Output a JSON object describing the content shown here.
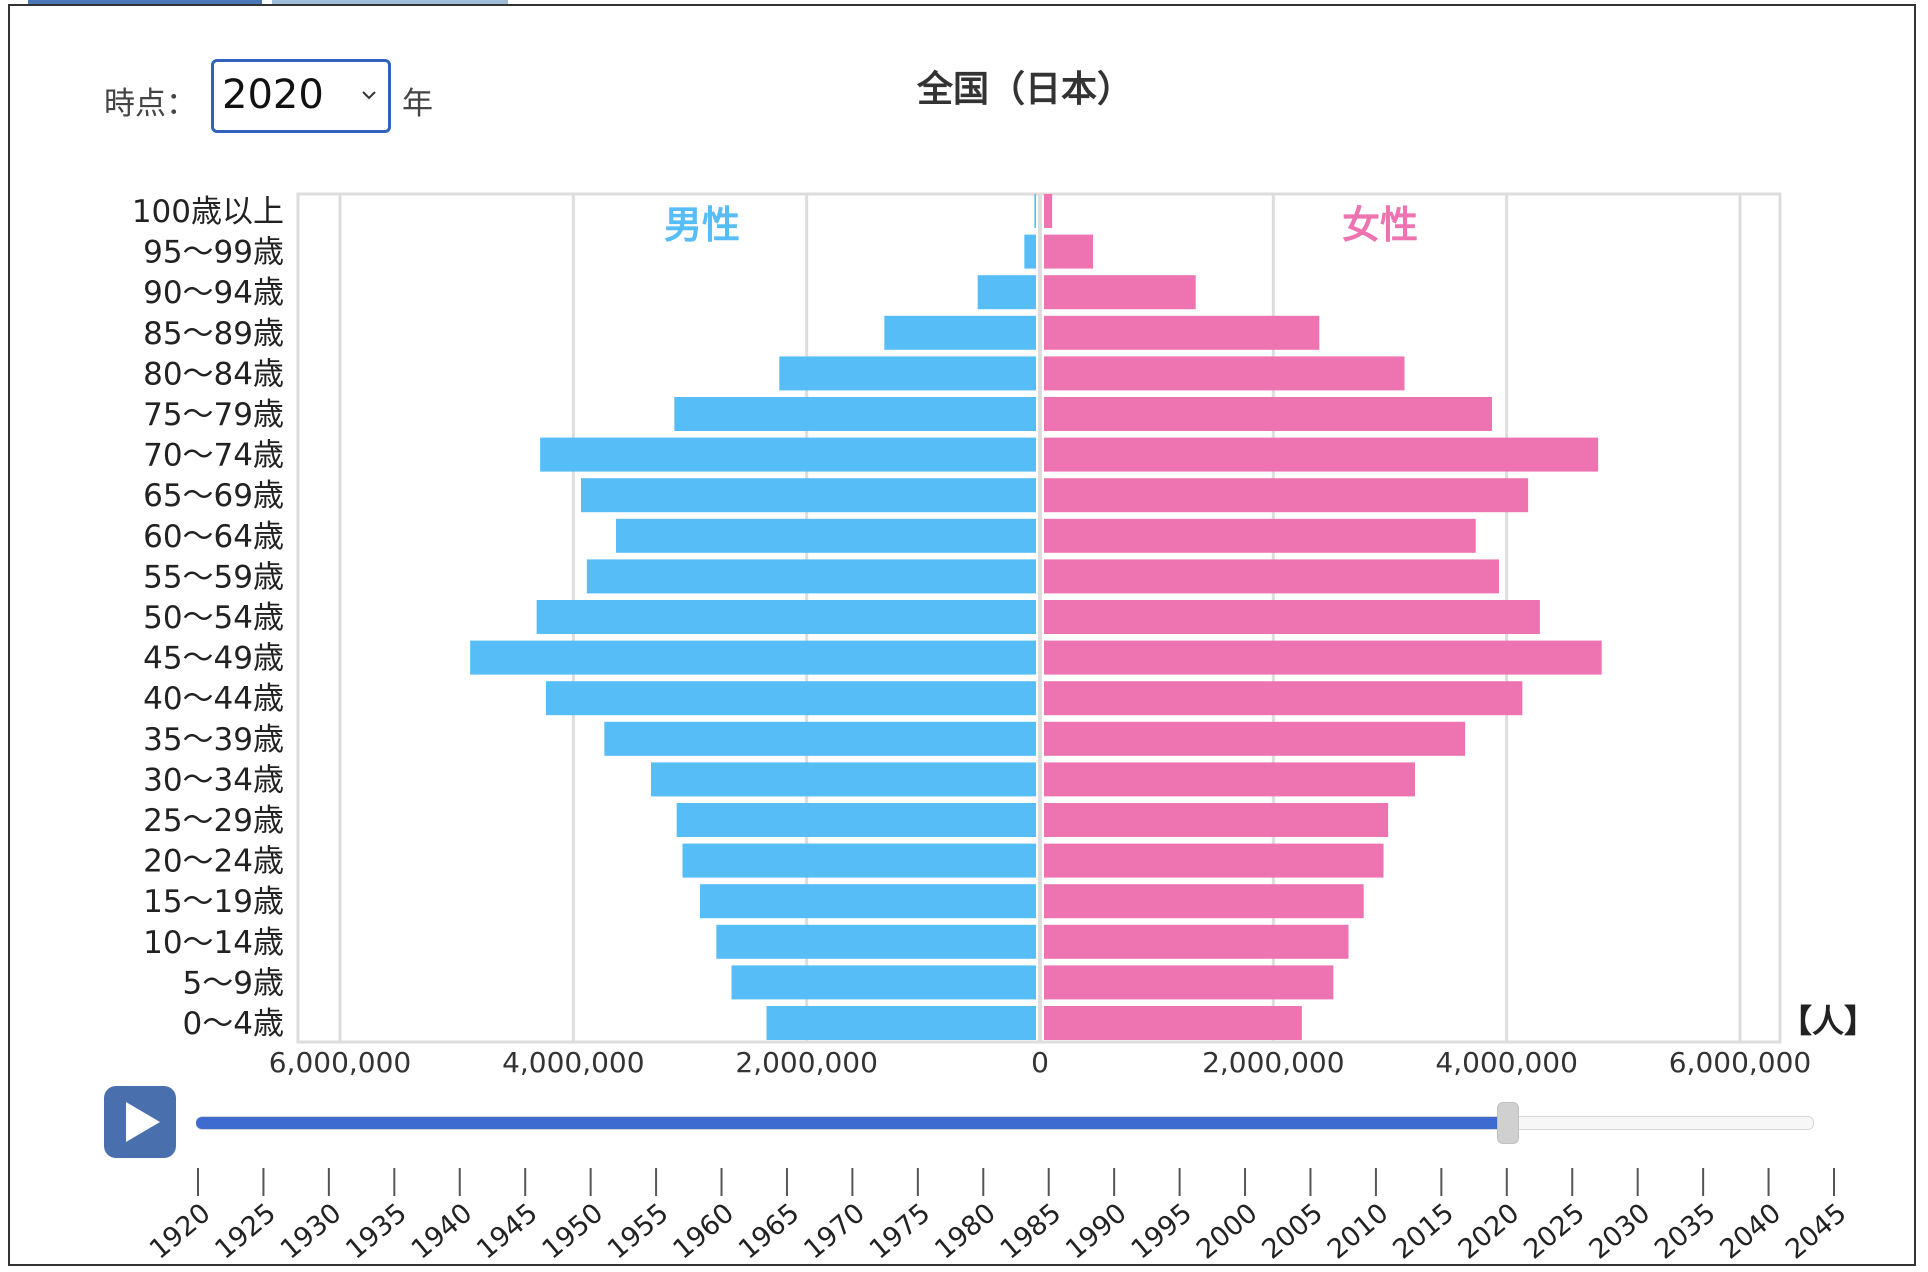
{
  "controls": {
    "time_label": "時点：",
    "year_selected": "2020",
    "year_unit": "年",
    "play_icon": "play-icon",
    "slider_value_year": 2020
  },
  "colors": {
    "male": "#56bdf6",
    "female": "#ee74b1",
    "male_label": "#56bdf6",
    "female_label": "#ee74b1",
    "accent": "#3d6bcf"
  },
  "chart_data": {
    "type": "bar",
    "orientation": "horizontal-pyramid",
    "title": "全国（日本）",
    "unit_label": "【人】",
    "categories": [
      "100歳以上",
      "95〜99歳",
      "90〜94歳",
      "85〜89歳",
      "80〜84歳",
      "75〜79歳",
      "70〜74歳",
      "65〜69歳",
      "60〜64歳",
      "55〜59歳",
      "50〜54歳",
      "45〜49歳",
      "40〜44歳",
      "35〜39歳",
      "30〜34歳",
      "25〜29歳",
      "20〜24歳",
      "15〜19歳",
      "10〜14歳",
      "5〜9歳",
      "0〜4歳"
    ],
    "series": [
      {
        "name": "男性",
        "values": [
          14000,
          100000,
          500000,
          1300000,
          2200000,
          3100000,
          4250000,
          3900000,
          3600000,
          3850000,
          4280000,
          4850000,
          4200000,
          3700000,
          3300000,
          3080000,
          3030000,
          2880000,
          2740000,
          2610000,
          2310000
        ]
      },
      {
        "name": "女性",
        "values": [
          70000,
          420000,
          1300000,
          2360000,
          3090000,
          3840000,
          4750000,
          4150000,
          3700000,
          3900000,
          4250000,
          4780000,
          4100000,
          3610000,
          3180000,
          2950000,
          2910000,
          2740000,
          2610000,
          2480000,
          2210000
        ]
      }
    ],
    "xticks": [
      "6,000,000",
      "4,000,000",
      "2,000,000",
      "0",
      "2,000,000",
      "4,000,000",
      "6,000,000"
    ],
    "xlim": [
      -6000000,
      6000000
    ],
    "grid": true
  },
  "timeline": {
    "years": [
      "1920",
      "1925",
      "1930",
      "1935",
      "1940",
      "1945",
      "1950",
      "1955",
      "1960",
      "1965",
      "1970",
      "1975",
      "1980",
      "1985",
      "1990",
      "1995",
      "2000",
      "2005",
      "2010",
      "2015",
      "2020",
      "2025",
      "2030",
      "2035",
      "2040",
      "2045"
    ]
  }
}
